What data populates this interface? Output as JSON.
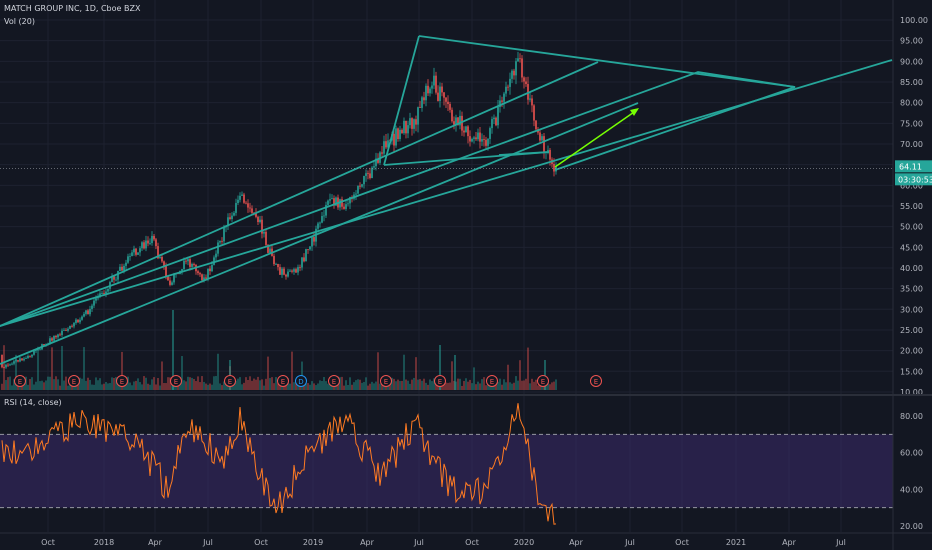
{
  "header": {
    "symbol_line": "MATCH GROUP INC, 1D, Cboe BZX",
    "volume_label": "Vol (20)",
    "rsi_label": "RSI (14, close)"
  },
  "price_axis": {
    "ticks": [
      "100.00",
      "95.00",
      "90.00",
      "85.00",
      "80.00",
      "75.00",
      "70.00",
      "65.00",
      "60.00",
      "55.00",
      "50.00",
      "45.00",
      "40.00",
      "35.00",
      "30.00",
      "25.00",
      "20.00",
      "15.00",
      "10.00"
    ],
    "current_price": "64.11",
    "countdown": "03:30:53",
    "price_badge_color": "#26a69a"
  },
  "rsi_axis": {
    "ticks": [
      "80.00",
      "60.00",
      "40.00",
      "20.00"
    ],
    "overbought": 70,
    "oversold": 30
  },
  "time_axis": {
    "labels": [
      "Oct",
      "2018",
      "Apr",
      "Jul",
      "Oct",
      "2019",
      "Apr",
      "Jul",
      "Oct",
      "2020",
      "Apr",
      "Jul",
      "Oct",
      "2021",
      "Apr",
      "Jul"
    ]
  },
  "events": {
    "earnings_marker": "E",
    "dividend_marker": "D",
    "earnings_color": "#ef5350",
    "dividend_color": "#2196f3"
  },
  "colors": {
    "up": "#26a69a",
    "down": "#ef5350",
    "trendline": "#26a69a",
    "arrow": "#76ff03",
    "rsi_line": "#ff7b23",
    "rsi_band": "#3a2a6a"
  },
  "chart_data": {
    "type": "candlestick",
    "price_ylim": [
      10,
      100
    ],
    "rsi_ylim": [
      20,
      88
    ],
    "approx_close_path": [
      {
        "x": "2017-09",
        "close": 19
      },
      {
        "x": "2017-12",
        "close": 28
      },
      {
        "x": "2018-03",
        "close": 44
      },
      {
        "x": "2018-04",
        "close": 47
      },
      {
        "x": "2018-05",
        "close": 36
      },
      {
        "x": "2018-06",
        "close": 42
      },
      {
        "x": "2018-07",
        "close": 37
      },
      {
        "x": "2018-08",
        "close": 48
      },
      {
        "x": "2018-09",
        "close": 58
      },
      {
        "x": "2018-10",
        "close": 52
      },
      {
        "x": "2018-11",
        "close": 40
      },
      {
        "x": "2018-12",
        "close": 38
      },
      {
        "x": "2019-01",
        "close": 45
      },
      {
        "x": "2019-02",
        "close": 56
      },
      {
        "x": "2019-03",
        "close": 55
      },
      {
        "x": "2019-04",
        "close": 60
      },
      {
        "x": "2019-05",
        "close": 68
      },
      {
        "x": "2019-06",
        "close": 72
      },
      {
        "x": "2019-07",
        "close": 76
      },
      {
        "x": "2019-08",
        "close": 85
      },
      {
        "x": "2019-09",
        "close": 78
      },
      {
        "x": "2019-10",
        "close": 72
      },
      {
        "x": "2019-11",
        "close": 70
      },
      {
        "x": "2019-12",
        "close": 80
      },
      {
        "x": "2020-01",
        "close": 90
      },
      {
        "x": "2020-02",
        "close": 72
      },
      {
        "x": "2020-02-end",
        "close": 64.11
      }
    ],
    "approx_rsi_path": [
      {
        "x": "2017-09",
        "rsi": 60
      },
      {
        "x": "2017-12",
        "rsi": 78
      },
      {
        "x": "2018-03",
        "rsi": 68
      },
      {
        "x": "2018-05",
        "rsi": 38
      },
      {
        "x": "2018-06",
        "rsi": 78
      },
      {
        "x": "2018-08",
        "rsi": 55
      },
      {
        "x": "2018-09",
        "rsi": 80
      },
      {
        "x": "2018-11",
        "rsi": 28
      },
      {
        "x": "2019-01",
        "rsi": 60
      },
      {
        "x": "2019-03",
        "rsi": 80
      },
      {
        "x": "2019-05",
        "rsi": 45
      },
      {
        "x": "2019-07",
        "rsi": 76
      },
      {
        "x": "2019-09",
        "rsi": 40
      },
      {
        "x": "2019-11",
        "rsi": 38
      },
      {
        "x": "2020-01",
        "rsi": 84
      },
      {
        "x": "2020-02",
        "rsi": 36
      },
      {
        "x": "2020-02-end",
        "rsi": 24
      }
    ]
  }
}
